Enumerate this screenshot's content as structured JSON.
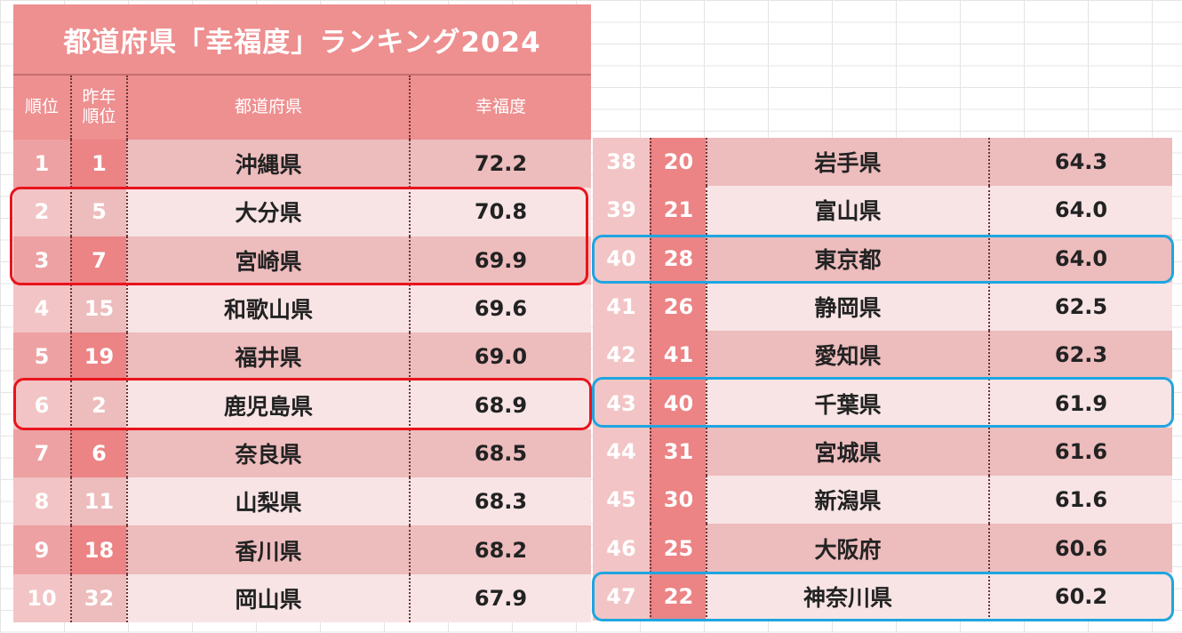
{
  "title": "都道府県「幸福度」ランキング2024",
  "headers": {
    "rank": "順位",
    "prev_rank_line1": "昨年",
    "prev_rank_line2": "順位",
    "prefecture": "都道府県",
    "score": "幸福度"
  },
  "left_rows": [
    {
      "rank": "1",
      "prev": "1",
      "pref": "沖縄県",
      "score": "72.2"
    },
    {
      "rank": "2",
      "prev": "5",
      "pref": "大分県",
      "score": "70.8"
    },
    {
      "rank": "3",
      "prev": "7",
      "pref": "宮崎県",
      "score": "69.9"
    },
    {
      "rank": "4",
      "prev": "15",
      "pref": "和歌山県",
      "score": "69.6"
    },
    {
      "rank": "5",
      "prev": "19",
      "pref": "福井県",
      "score": "69.0"
    },
    {
      "rank": "6",
      "prev": "2",
      "pref": "鹿児島県",
      "score": "68.9"
    },
    {
      "rank": "7",
      "prev": "6",
      "pref": "奈良県",
      "score": "68.5"
    },
    {
      "rank": "8",
      "prev": "11",
      "pref": "山梨県",
      "score": "68.3"
    },
    {
      "rank": "9",
      "prev": "18",
      "pref": "香川県",
      "score": "68.2"
    },
    {
      "rank": "10",
      "prev": "32",
      "pref": "岡山県",
      "score": "67.9"
    }
  ],
  "right_rows": [
    {
      "rank": "38",
      "prev": "20",
      "pref": "岩手県",
      "score": "64.3"
    },
    {
      "rank": "39",
      "prev": "21",
      "pref": "富山県",
      "score": "64.0"
    },
    {
      "rank": "40",
      "prev": "28",
      "pref": "東京都",
      "score": "64.0"
    },
    {
      "rank": "41",
      "prev": "26",
      "pref": "静岡県",
      "score": "62.5"
    },
    {
      "rank": "42",
      "prev": "41",
      "pref": "愛知県",
      "score": "62.3"
    },
    {
      "rank": "43",
      "prev": "40",
      "pref": "千葉県",
      "score": "61.9"
    },
    {
      "rank": "44",
      "prev": "31",
      "pref": "宮城県",
      "score": "61.6"
    },
    {
      "rank": "45",
      "prev": "30",
      "pref": "新潟県",
      "score": "61.6"
    },
    {
      "rank": "46",
      "prev": "25",
      "pref": "大阪府",
      "score": "60.6"
    },
    {
      "rank": "47",
      "prev": "22",
      "pref": "神奈川県",
      "score": "60.2"
    }
  ],
  "colors": {
    "highlight_red": "#e8141d",
    "highlight_blue": "#1ea6e0",
    "header": "#ee8f90"
  }
}
